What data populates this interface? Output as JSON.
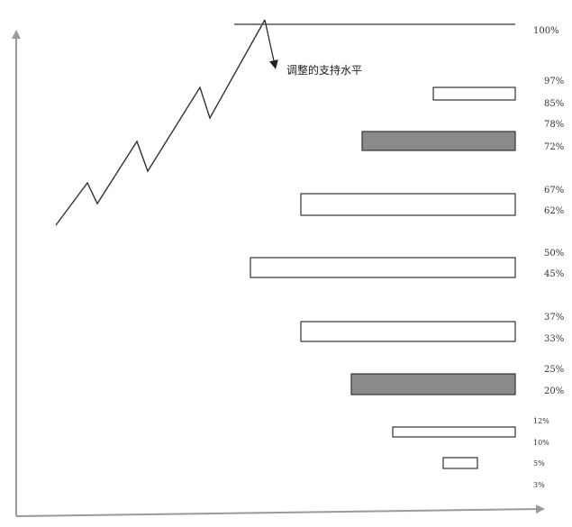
{
  "annotation": {
    "text": "调整的支持水平"
  },
  "level_labels": [
    {
      "id": "100",
      "text": "100%"
    },
    {
      "id": "97",
      "text": "97%"
    },
    {
      "id": "85",
      "text": "85%"
    },
    {
      "id": "78",
      "text": "78%"
    },
    {
      "id": "72",
      "text": "72%"
    },
    {
      "id": "67",
      "text": "67%"
    },
    {
      "id": "62",
      "text": "62%"
    },
    {
      "id": "50",
      "text": "50%"
    },
    {
      "id": "45",
      "text": "45%"
    },
    {
      "id": "37",
      "text": "37%"
    },
    {
      "id": "33",
      "text": "33%"
    },
    {
      "id": "25",
      "text": "25%"
    },
    {
      "id": "20",
      "text": "20%"
    },
    {
      "id": "12",
      "text": "12%"
    },
    {
      "id": "10",
      "text": "10%"
    },
    {
      "id": "5",
      "text": "5%"
    },
    {
      "id": "3",
      "text": "3%"
    }
  ],
  "bands": [
    {
      "upper": "97%",
      "lower": "85%",
      "shaded": false
    },
    {
      "upper": "78%",
      "lower": "72%",
      "shaded": true
    },
    {
      "upper": "67%",
      "lower": "62%",
      "shaded": false
    },
    {
      "upper": "50%",
      "lower": "45%",
      "shaded": false
    },
    {
      "upper": "37%",
      "lower": "33%",
      "shaded": false
    },
    {
      "upper": "25%",
      "lower": "20%",
      "shaded": true
    },
    {
      "upper": "12%",
      "lower": "10%",
      "shaded": false
    },
    {
      "upper": "5%",
      "lower": "3%",
      "shaded": false
    }
  ],
  "colors": {
    "shaded_fill": "#8a8a8a",
    "empty_fill": "#ffffff",
    "axis": "#9a9a9a"
  }
}
